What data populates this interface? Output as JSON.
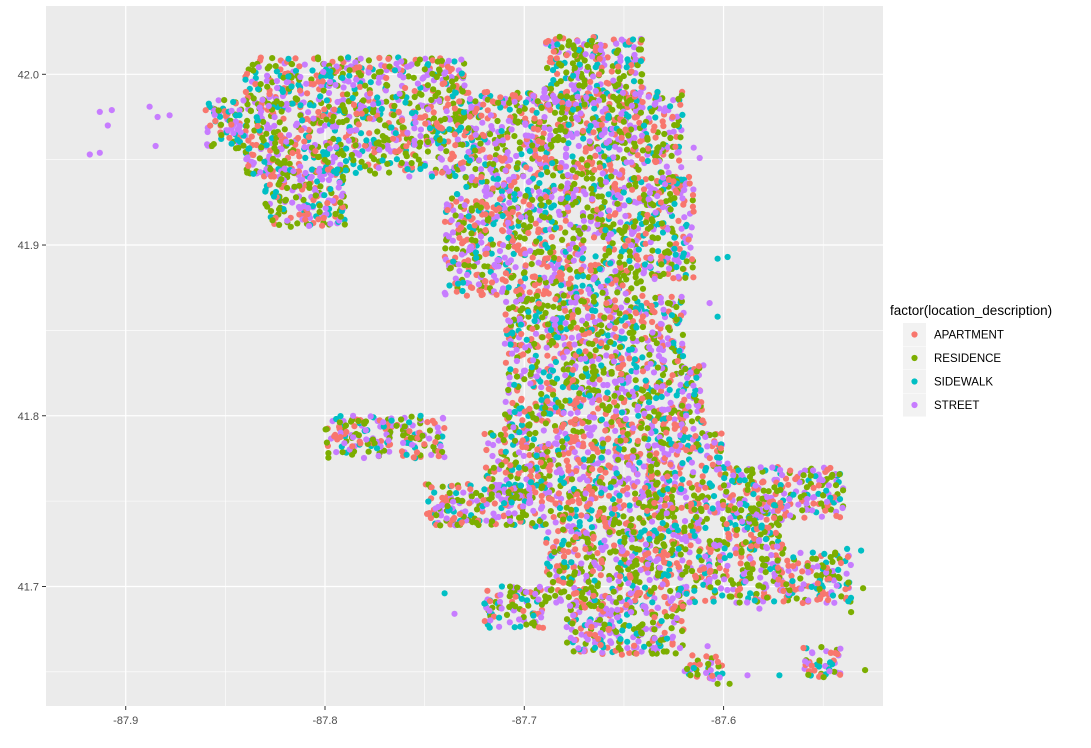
{
  "chart_data": {
    "type": "scatter",
    "title": "",
    "xlabel": "",
    "ylabel": "",
    "xlim": [
      -87.94,
      -87.52
    ],
    "ylim": [
      41.63,
      42.04
    ],
    "x_ticks": [
      {
        "value": -87.9,
        "label": "-87.9"
      },
      {
        "value": -87.8,
        "label": "-87.8"
      },
      {
        "value": -87.7,
        "label": "-87.7"
      },
      {
        "value": -87.6,
        "label": "-87.6"
      }
    ],
    "y_ticks": [
      {
        "value": 41.7,
        "label": "41.7"
      },
      {
        "value": 41.8,
        "label": "41.8"
      },
      {
        "value": 41.9,
        "label": "41.9"
      },
      {
        "value": 42.0,
        "label": "42.0"
      }
    ],
    "grid": true,
    "background": "#ebebeb",
    "legend_position": "right",
    "legend": {
      "title": "factor(location_description)",
      "entries": [
        {
          "label": "APARTMENT",
          "color": "#F8766D"
        },
        {
          "label": "RESIDENCE",
          "color": "#7CAE00"
        },
        {
          "label": "SIDEWALK",
          "color": "#00BFC4"
        },
        {
          "label": "STREET",
          "color": "#C77CFF"
        }
      ]
    },
    "point_density_regions": [
      {
        "xmin": -87.69,
        "xmax": -87.64,
        "ymin": 41.98,
        "ymax": 42.022
      },
      {
        "xmin": -87.73,
        "xmax": -87.62,
        "ymin": 41.93,
        "ymax": 41.99
      },
      {
        "xmin": -87.84,
        "xmax": -87.73,
        "ymin": 41.94,
        "ymax": 42.01
      },
      {
        "xmin": -87.86,
        "xmax": -87.84,
        "ymin": 41.955,
        "ymax": 41.985
      },
      {
        "xmin": -87.83,
        "xmax": -87.79,
        "ymin": 41.91,
        "ymax": 41.945
      },
      {
        "xmin": -87.74,
        "xmax": -87.64,
        "ymin": 41.87,
        "ymax": 41.93
      },
      {
        "xmin": -87.64,
        "xmax": -87.615,
        "ymin": 41.88,
        "ymax": 41.94
      },
      {
        "xmin": -87.71,
        "xmax": -87.62,
        "ymin": 41.83,
        "ymax": 41.87
      },
      {
        "xmin": -87.71,
        "xmax": -87.61,
        "ymin": 41.79,
        "ymax": 41.83
      },
      {
        "xmin": -87.8,
        "xmax": -87.74,
        "ymin": 41.775,
        "ymax": 41.8
      },
      {
        "xmin": -87.72,
        "xmax": -87.6,
        "ymin": 41.75,
        "ymax": 41.79
      },
      {
        "xmin": -87.6,
        "xmax": -87.54,
        "ymin": 41.74,
        "ymax": 41.77
      },
      {
        "xmin": -87.75,
        "xmax": -87.69,
        "ymin": 41.735,
        "ymax": 41.76
      },
      {
        "xmin": -87.69,
        "xmax": -87.57,
        "ymin": 41.69,
        "ymax": 41.75
      },
      {
        "xmin": -87.57,
        "xmax": -87.535,
        "ymin": 41.69,
        "ymax": 41.72
      },
      {
        "xmin": -87.68,
        "xmax": -87.62,
        "ymin": 41.66,
        "ymax": 41.69
      },
      {
        "xmin": -87.72,
        "xmax": -87.69,
        "ymin": 41.675,
        "ymax": 41.7
      },
      {
        "xmin": -87.62,
        "xmax": -87.6,
        "ymin": 41.645,
        "ymax": 41.66
      },
      {
        "xmin": -87.56,
        "xmax": -87.54,
        "ymin": 41.645,
        "ymax": 41.665
      }
    ],
    "points": [
      {
        "x": -87.913,
        "y": 41.978,
        "category": "STREET"
      },
      {
        "x": -87.907,
        "y": 41.979,
        "category": "STREET"
      },
      {
        "x": -87.909,
        "y": 41.97,
        "category": "STREET"
      },
      {
        "x": -87.888,
        "y": 41.981,
        "category": "STREET"
      },
      {
        "x": -87.878,
        "y": 41.976,
        "category": "STREET"
      },
      {
        "x": -87.884,
        "y": 41.975,
        "category": "STREET"
      },
      {
        "x": -87.885,
        "y": 41.958,
        "category": "STREET"
      },
      {
        "x": -87.918,
        "y": 41.953,
        "category": "STREET"
      },
      {
        "x": -87.913,
        "y": 41.954,
        "category": "STREET"
      },
      {
        "x": -87.598,
        "y": 41.893,
        "category": "SIDEWALK"
      },
      {
        "x": -87.603,
        "y": 41.892,
        "category": "SIDEWALK"
      },
      {
        "x": -87.603,
        "y": 41.858,
        "category": "SIDEWALK"
      },
      {
        "x": -87.607,
        "y": 41.866,
        "category": "STREET"
      },
      {
        "x": -87.538,
        "y": 41.722,
        "category": "SIDEWALK"
      },
      {
        "x": -87.531,
        "y": 41.721,
        "category": "SIDEWALK"
      },
      {
        "x": -87.735,
        "y": 41.684,
        "category": "STREET"
      },
      {
        "x": -87.74,
        "y": 41.696,
        "category": "SIDEWALK"
      },
      {
        "x": -87.72,
        "y": 41.69,
        "category": "SIDEWALK"
      },
      {
        "x": -87.608,
        "y": 41.665,
        "category": "STREET"
      },
      {
        "x": -87.603,
        "y": 41.643,
        "category": "RESIDENCE"
      },
      {
        "x": -87.597,
        "y": 41.643,
        "category": "RESIDENCE"
      },
      {
        "x": -87.588,
        "y": 41.648,
        "category": "STREET"
      },
      {
        "x": -87.572,
        "y": 41.648,
        "category": "SIDEWALK"
      },
      {
        "x": -87.529,
        "y": 41.651,
        "category": "RESIDENCE"
      },
      {
        "x": -87.582,
        "y": 41.687,
        "category": "STREET"
      },
      {
        "x": -87.589,
        "y": 41.703,
        "category": "STREET"
      },
      {
        "x": -87.607,
        "y": 41.704,
        "category": "STREET"
      },
      {
        "x": -87.53,
        "y": 41.699,
        "category": "RESIDENCE"
      },
      {
        "x": -87.536,
        "y": 41.685,
        "category": "RESIDENCE"
      },
      {
        "x": -87.598,
        "y": 41.772,
        "category": "STREET"
      },
      {
        "x": -87.612,
        "y": 41.951,
        "category": "STREET"
      },
      {
        "x": -87.615,
        "y": 41.957,
        "category": "STREET"
      }
    ]
  }
}
